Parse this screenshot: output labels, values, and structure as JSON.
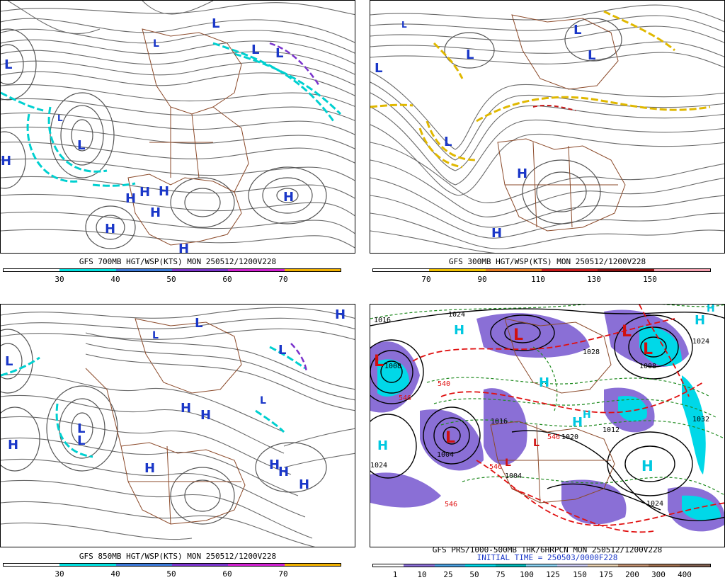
{
  "panels": [
    {
      "caption": "GFS 700MB HGT/WSP(KTS) MON 250512/1200V228",
      "colorbar": [
        "#ffffff",
        "#00e0e0",
        "#3a78d8",
        "#7a33cc",
        "#d01fd0",
        "#f0b000"
      ],
      "ticks": [
        "30",
        "40",
        "50",
        "60",
        "70"
      ],
      "markers": [
        "L",
        "L",
        "L",
        "L",
        "L",
        "L",
        "L",
        "H",
        "H",
        "H",
        "H",
        "H",
        "H",
        "H",
        "H"
      ]
    },
    {
      "caption": "GFS 300MB HGT/WSP(KTS) MON 250512/1200V228",
      "colorbar": [
        "#ffffff",
        "#f0c000",
        "#e87a20",
        "#c81818",
        "#8b1010",
        "#f4a0b0"
      ],
      "ticks": [
        "70",
        "90",
        "110",
        "130",
        "150"
      ],
      "markers": [
        "L",
        "L",
        "L",
        "L",
        "L",
        "L",
        "H",
        "H"
      ]
    },
    {
      "caption": "GFS 850MB HGT/WSP(KTS) MON 250512/1200V228",
      "colorbar": [
        "#ffffff",
        "#00e0e0",
        "#3a78d8",
        "#7a33cc",
        "#d01fd0",
        "#f0b000"
      ],
      "ticks": [
        "30",
        "40",
        "50",
        "60",
        "70"
      ],
      "markers": [
        "L",
        "L",
        "L",
        "L",
        "L",
        "L",
        "L",
        "H",
        "H",
        "H",
        "H",
        "H",
        "H",
        "H",
        "H"
      ]
    },
    {
      "caption": "GFS PRS/1000-500MB THK/6HRPCN MON 250512/1200V228",
      "caption2": "INITIAL TIME = 250503/0000F228",
      "colorbar": [
        "#ffffff",
        "#8a6fd6",
        "#4aa0e0",
        "#00d8e8",
        "#00b8b8",
        "#88d0f0",
        "#c8c8f0",
        "#e8d0b0",
        "#c09070",
        "#a07050",
        "#806050"
      ],
      "ticks": [
        "1",
        "10",
        "25",
        "50",
        "75",
        "100",
        "125",
        "150",
        "175",
        "200",
        "300",
        "400"
      ],
      "markers": [
        "L",
        "L",
        "L",
        "L",
        "L",
        "L",
        "L",
        "H",
        "H",
        "H",
        "H",
        "H",
        "H",
        "H",
        "H"
      ],
      "contour_values": [
        "1024",
        "1016",
        "1024",
        "1028",
        "1024",
        "1004",
        "1008",
        "1008",
        "1024",
        "1032",
        "1012",
        "1004",
        "1020",
        "1016",
        "540",
        "546",
        "546",
        "546",
        "546"
      ]
    }
  ]
}
